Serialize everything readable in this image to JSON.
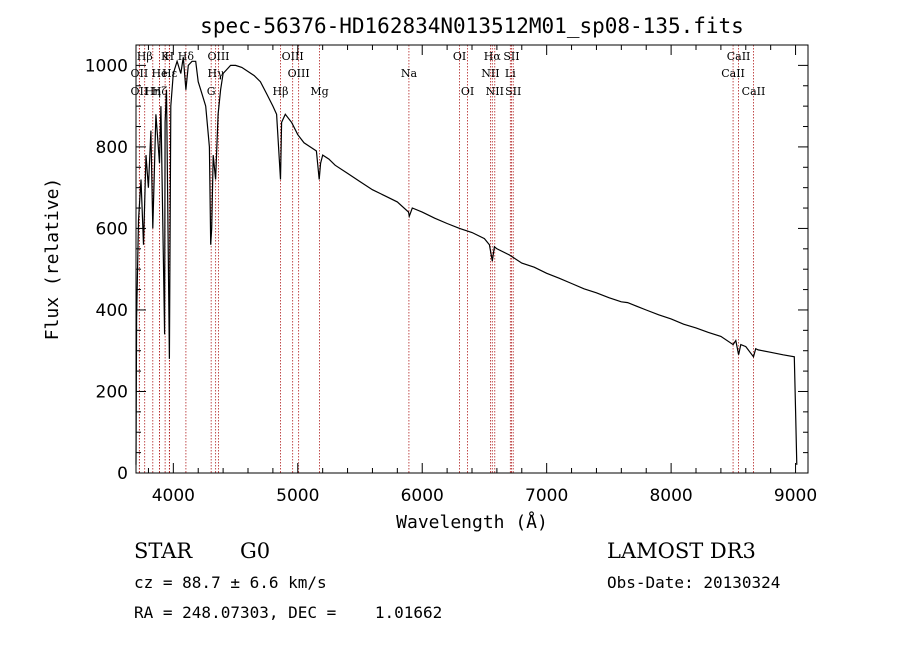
{
  "chart_data": {
    "type": "line",
    "title": "spec-56376-HD162834N013512M01_sp08-135.fits",
    "xlabel": "Wavelength (Å)",
    "ylabel": "Flux (relative)",
    "xlim": [
      3700,
      9100
    ],
    "ylim": [
      0,
      1050
    ],
    "x_ticks": [
      4000,
      5000,
      6000,
      7000,
      8000,
      9000
    ],
    "y_ticks": [
      0,
      200,
      400,
      600,
      800,
      1000
    ],
    "grid": false,
    "series": [
      {
        "name": "spectrum",
        "x": [
          3700,
          3705,
          3720,
          3740,
          3760,
          3780,
          3800,
          3820,
          3835,
          3860,
          3889,
          3900,
          3930,
          3934,
          3945,
          3968,
          3980,
          4000,
          4030,
          4060,
          4080,
          4101,
          4120,
          4150,
          4180,
          4200,
          4230,
          4260,
          4290,
          4300,
          4308,
          4320,
          4340,
          4360,
          4380,
          4400,
          4430,
          4460,
          4500,
          4550,
          4600,
          4650,
          4700,
          4750,
          4800,
          4830,
          4861,
          4870,
          4900,
          4950,
          5000,
          5050,
          5100,
          5150,
          5172,
          5183,
          5200,
          5250,
          5300,
          5400,
          5500,
          5600,
          5700,
          5800,
          5890,
          5896,
          5920,
          6000,
          6100,
          6200,
          6300,
          6400,
          6500,
          6540,
          6563,
          6580,
          6600,
          6700,
          6800,
          6900,
          7000,
          7100,
          7200,
          7300,
          7400,
          7500,
          7600,
          7650,
          7700,
          7800,
          7900,
          8000,
          8100,
          8200,
          8300,
          8400,
          8498,
          8520,
          8542,
          8560,
          8600,
          8662,
          8680,
          8700,
          8800,
          8900,
          8990,
          9000,
          9010
        ],
        "values": [
          20,
          380,
          620,
          720,
          560,
          780,
          700,
          840,
          600,
          880,
          760,
          900,
          340,
          860,
          940,
          280,
          900,
          980,
          1010,
          980,
          1020,
          940,
          1000,
          1010,
          1010,
          960,
          930,
          900,
          800,
          560,
          600,
          780,
          720,
          880,
          940,
          980,
          990,
          1000,
          1000,
          995,
          985,
          975,
          960,
          930,
          900,
          880,
          720,
          860,
          880,
          860,
          830,
          810,
          800,
          790,
          720,
          760,
          780,
          770,
          755,
          735,
          715,
          695,
          680,
          665,
          640,
          630,
          650,
          640,
          625,
          612,
          600,
          590,
          575,
          560,
          520,
          555,
          550,
          535,
          515,
          505,
          490,
          478,
          465,
          452,
          442,
          430,
          420,
          418,
          412,
          400,
          388,
          378,
          365,
          356,
          345,
          335,
          315,
          325,
          290,
          315,
          310,
          285,
          305,
          302,
          296,
          290,
          285,
          150,
          20
        ]
      }
    ],
    "line_markers": [
      {
        "label": "Hβ",
        "x": 3770,
        "row": 1
      },
      {
        "label": "K",
        "x": 3934,
        "row": 1
      },
      {
        "label": "H",
        "x": 3968,
        "row": 1
      },
      {
        "label": "Hδ",
        "x": 4101,
        "row": 1
      },
      {
        "label": "OII",
        "x": 3727,
        "row": 2
      },
      {
        "label": "He",
        "x": 3889,
        "row": 2
      },
      {
        "label": "Hε",
        "x": 3970,
        "row": 2
      },
      {
        "label": "OII",
        "x": 3727,
        "row": 3
      },
      {
        "label": "Hη",
        "x": 3835,
        "row": 3
      },
      {
        "label": "Hζ",
        "x": 3889,
        "row": 3
      },
      {
        "label": "OIII",
        "x": 4363,
        "row": 1
      },
      {
        "label": "Hγ",
        "x": 4340,
        "row": 2
      },
      {
        "label": "G",
        "x": 4304,
        "row": 3
      },
      {
        "label": "OIII",
        "x": 4959,
        "row": 1
      },
      {
        "label": "OIII",
        "x": 5007,
        "row": 2
      },
      {
        "label": "Hβ",
        "x": 4861,
        "row": 3
      },
      {
        "label": "Mg",
        "x": 5175,
        "row": 3
      },
      {
        "label": "Na",
        "x": 5893,
        "row": 2
      },
      {
        "label": "OI",
        "x": 6300,
        "row": 1
      },
      {
        "label": "OI",
        "x": 6364,
        "row": 3
      },
      {
        "label": "Hα",
        "x": 6563,
        "row": 1
      },
      {
        "label": "NII",
        "x": 6548,
        "row": 2
      },
      {
        "label": "NII",
        "x": 6583,
        "row": 3
      },
      {
        "label": "SII",
        "x": 6717,
        "row": 1
      },
      {
        "label": "Li",
        "x": 6708,
        "row": 2
      },
      {
        "label": "SII",
        "x": 6731,
        "row": 3
      },
      {
        "label": "CaII",
        "x": 8542,
        "row": 1
      },
      {
        "label": "CaII",
        "x": 8498,
        "row": 2
      },
      {
        "label": "CaII",
        "x": 8662,
        "row": 3
      }
    ]
  },
  "info": {
    "object_class": "STAR",
    "subclass": "G0",
    "survey": "LAMOST DR3",
    "redshift": "cz = 88.7 ± 6.6 km/s",
    "obs_date": "Obs-Date: 20130324",
    "coords": "RA = 248.07303, DEC =    1.01662"
  },
  "colors": {
    "spectrum": "#000000",
    "marker_line": "#b22222",
    "axes": "#000000",
    "background": "#ffffff"
  }
}
